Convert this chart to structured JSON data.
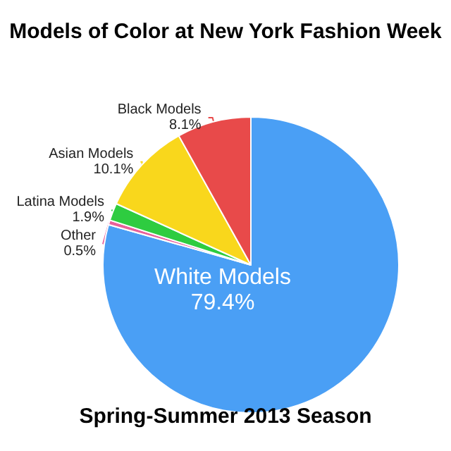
{
  "chart_data": {
    "type": "pie",
    "title": "Models of Color at New York Fashion Week",
    "subtitle": "Spring-Summer 2013 Season",
    "categories": [
      "White Models",
      "Other",
      "Latina Models",
      "Asian Models",
      "Black Models"
    ],
    "values": [
      79.4,
      0.5,
      1.9,
      10.1,
      8.1
    ],
    "colors": [
      "#4a9ff5",
      "#e8609a",
      "#2ecc40",
      "#f9d71c",
      "#e84a4a"
    ],
    "value_labels": [
      "79.4%",
      "0.5%",
      "1.9%",
      "10.1%",
      "8.1%"
    ],
    "legend": false
  }
}
